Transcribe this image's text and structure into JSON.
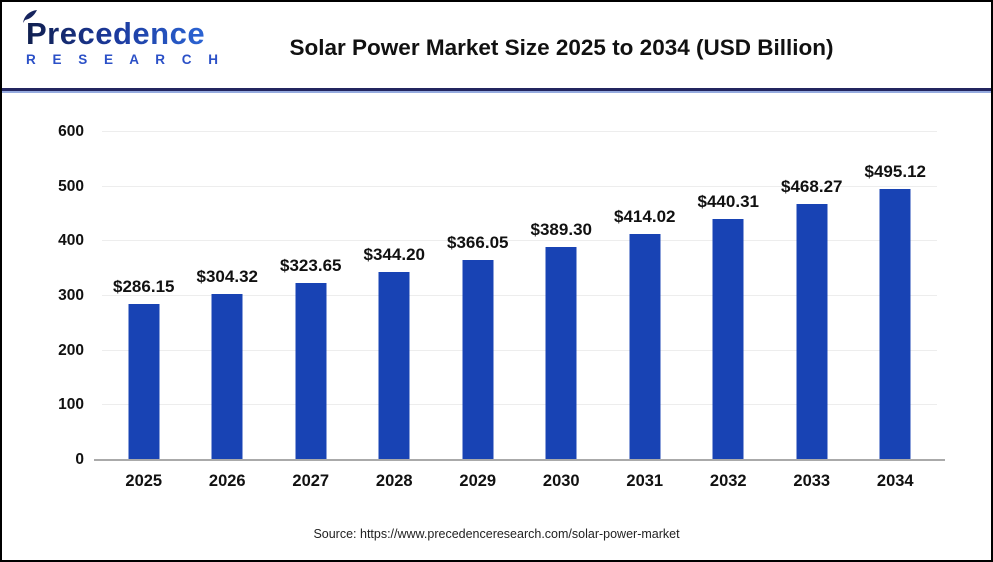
{
  "header": {
    "logo_line1": "Precedence",
    "logo_line2": "R E S E A R C H",
    "title": "Solar Power Market Size 2025 to 2034 (USD Billion)"
  },
  "chart_data": {
    "type": "bar",
    "title": "Solar Power Market Size 2025 to 2034 (USD Billion)",
    "categories": [
      "2025",
      "2026",
      "2027",
      "2028",
      "2029",
      "2030",
      "2031",
      "2032",
      "2033",
      "2034"
    ],
    "values": [
      286.15,
      304.32,
      323.65,
      344.2,
      366.05,
      389.3,
      414.02,
      440.31,
      468.27,
      495.12
    ],
    "value_labels": [
      "$286.15",
      "$304.32",
      "$323.65",
      "$344.20",
      "$366.05",
      "$389.30",
      "$414.02",
      "$440.31",
      "$468.27",
      "$495.12"
    ],
    "xlabel": "",
    "ylabel": "",
    "ylim": [
      0,
      600
    ],
    "yticks": [
      0,
      100,
      200,
      300,
      400,
      500,
      600
    ],
    "grid": "horizontal",
    "legend": "none",
    "bar_color": "#1843b4"
  },
  "footer": {
    "source": "Source: https://www.precedenceresearch.com/solar-power-market"
  }
}
